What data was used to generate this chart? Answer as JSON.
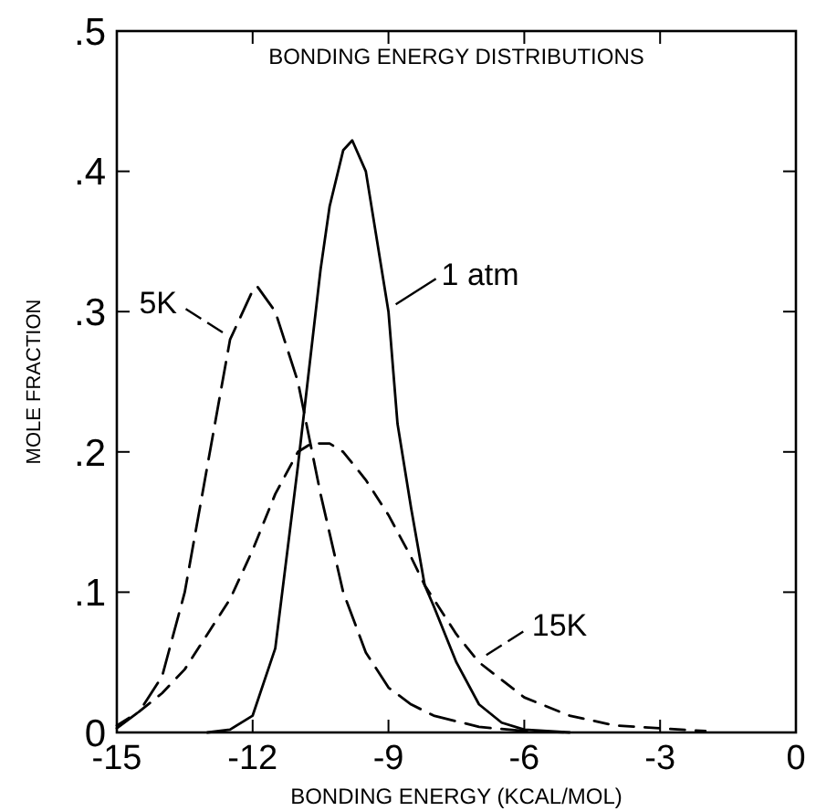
{
  "chart_data": {
    "type": "line",
    "title": "BONDING ENERGY DISTRIBUTIONS",
    "xlabel": "BONDING ENERGY (KCAL/MOL)",
    "ylabel": "MOLE FRACTION",
    "xlim": [
      -15,
      0
    ],
    "xticks": [
      -15,
      -12,
      -9,
      -6,
      -3,
      0
    ],
    "ylim": [
      0,
      0.5
    ],
    "yticks": [
      0,
      {
        "value": 0.1,
        "label": ".1"
      },
      {
        "value": 0.2,
        "label": ".2"
      },
      {
        "value": 0.3,
        "label": ".3"
      },
      {
        "value": 0.4,
        "label": ".4"
      },
      {
        "value": 0.5,
        "label": ".5"
      }
    ],
    "grid": false,
    "legend": "right",
    "series": [
      {
        "name": "1 atm",
        "color": "#000000",
        "line_style": "solid",
        "x": [
          -13,
          -12.5,
          -12,
          -11.5,
          -11,
          -10.5,
          -10.3,
          -10,
          -9.8,
          -9.5,
          -9,
          -8.8,
          -8.5,
          -8.2,
          -8,
          -7.5,
          -7,
          -6.5,
          -6,
          -5
        ],
        "values": [
          0,
          0.002,
          0.012,
          0.06,
          0.19,
          0.33,
          0.375,
          0.415,
          0.422,
          0.4,
          0.3,
          0.22,
          0.16,
          0.105,
          0.09,
          0.05,
          0.02,
          0.007,
          0.002,
          0
        ]
      },
      {
        "name": "5K",
        "color": "#000000",
        "line_style": "dashed",
        "x": [
          -15,
          -14.5,
          -14,
          -13.5,
          -13,
          -12.5,
          -12,
          -11.9,
          -11.5,
          -11,
          -10.5,
          -10,
          -9.5,
          -9,
          -8.5,
          -8,
          -7,
          -6,
          -5
        ],
        "values": [
          0.003,
          0.015,
          0.04,
          0.1,
          0.19,
          0.28,
          0.315,
          0.318,
          0.3,
          0.25,
          0.17,
          0.1,
          0.057,
          0.032,
          0.02,
          0.012,
          0.004,
          0.001,
          0
        ]
      },
      {
        "name": "15K",
        "color": "#000000",
        "line_style": "dashed",
        "x": [
          -15,
          -14.5,
          -14,
          -13.5,
          -13,
          -12.5,
          -12,
          -11.5,
          -11,
          -10.7,
          -10.3,
          -10,
          -9.5,
          -9,
          -8.5,
          -8.2,
          -7.5,
          -7,
          -6,
          -5,
          -4,
          -3,
          -2
        ],
        "values": [
          0.005,
          0.015,
          0.028,
          0.045,
          0.07,
          0.095,
          0.13,
          0.17,
          0.2,
          0.206,
          0.206,
          0.2,
          0.18,
          0.155,
          0.125,
          0.105,
          0.07,
          0.05,
          0.025,
          0.012,
          0.005,
          0.003,
          0.001
        ]
      }
    ]
  }
}
